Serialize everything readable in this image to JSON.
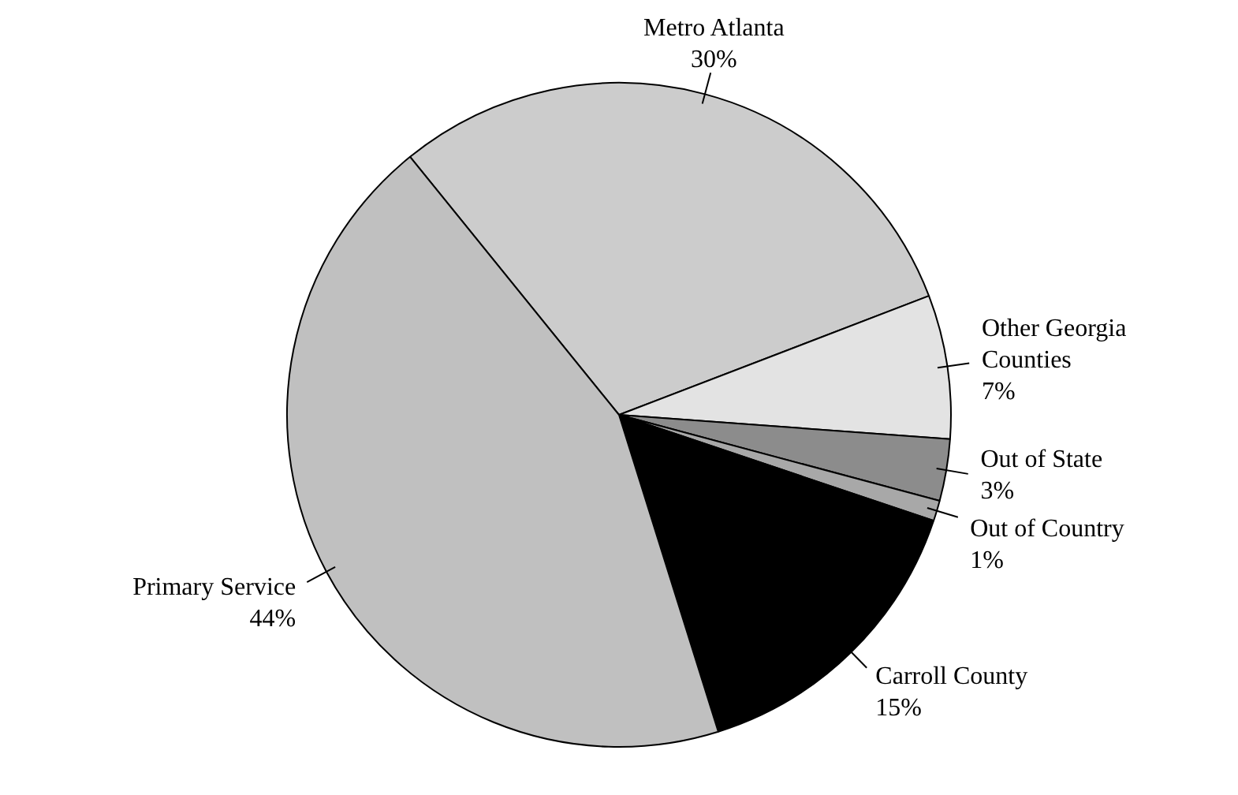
{
  "chart_data": {
    "type": "pie",
    "categories": [
      "Metro Atlanta",
      "Other Georgia Counties",
      "Out of State",
      "Out of Country",
      "Carroll County",
      "Primary Service"
    ],
    "values": [
      30,
      7,
      3,
      1,
      15,
      44
    ],
    "value_labels": [
      "30%",
      "7%",
      "3%",
      "1%",
      "15%",
      "44%"
    ],
    "colors": [
      "#cccccc",
      "#e3e3e3",
      "#8c8c8c",
      "#a8a8a8",
      "#000000",
      "#c0c0c0"
    ],
    "legend": false
  }
}
